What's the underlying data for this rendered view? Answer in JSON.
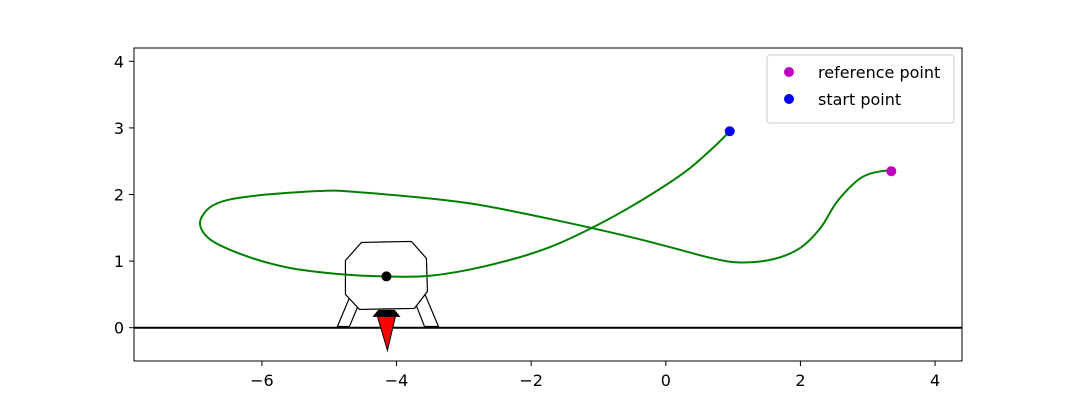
{
  "chart_data": {
    "type": "line",
    "title": "",
    "xlabel": "",
    "ylabel": "",
    "xlim": [
      -7.9,
      4.4
    ],
    "ylim": [
      -0.5,
      4.2
    ],
    "grid": false,
    "legend_placement": "top-right",
    "x_ticks": [
      -6,
      -4,
      -2,
      0,
      2,
      4
    ],
    "y_ticks": [
      0,
      1,
      2,
      3,
      4
    ],
    "x_tick_labels": [
      "−6",
      "−4",
      "−2",
      "0",
      "2",
      "4"
    ],
    "y_tick_labels": [
      "0",
      "1",
      "2",
      "3",
      "4"
    ],
    "series": [
      {
        "type": "line",
        "color": "#008000",
        "x": [
          0.95,
          0.7,
          0.3,
          -0.3,
          -1.0,
          -1.8,
          -2.7,
          -3.5,
          -4.15,
          -4.8,
          -5.6,
          -6.3,
          -6.8,
          -6.9,
          -6.5,
          -5.2,
          -4.5,
          -3.0,
          -1.8,
          -0.6,
          0.1,
          0.7,
          1.1,
          1.6,
          2.0,
          2.3,
          2.55,
          2.9,
          3.2,
          3.35
        ],
        "y": [
          2.95,
          2.7,
          2.35,
          1.95,
          1.55,
          1.18,
          0.92,
          0.78,
          0.77,
          0.8,
          0.9,
          1.1,
          1.35,
          1.65,
          1.92,
          2.05,
          2.03,
          1.88,
          1.65,
          1.38,
          1.2,
          1.04,
          0.98,
          1.03,
          1.2,
          1.5,
          1.9,
          2.25,
          2.35,
          2.35
        ]
      },
      {
        "type": "scatter",
        "name": "reference point",
        "color": "#bf00bf",
        "x": [
          3.35
        ],
        "y": [
          2.35
        ]
      },
      {
        "type": "scatter",
        "name": "start point",
        "color": "#0000ff",
        "x": [
          0.95
        ],
        "y": [
          2.95
        ]
      }
    ],
    "ground": {
      "y": 0,
      "color": "#000000"
    },
    "lander": {
      "center_x": -4.15,
      "center_y": 0.77,
      "body_color": "#ffffff",
      "outline_color": "#000000",
      "flame_color": "#ff0000",
      "center_marker_color": "#000000"
    }
  }
}
